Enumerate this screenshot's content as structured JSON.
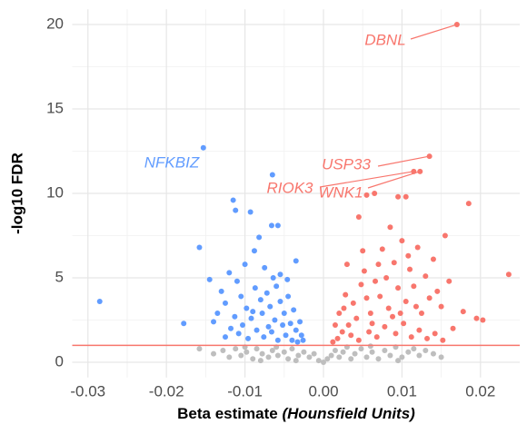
{
  "chart_data": {
    "type": "scatter",
    "xlabel": "Beta estimate",
    "xlabel_unit": "(Hounsfield Units)",
    "ylabel": "-log10 FDR",
    "xlim": [
      -0.032,
      0.025
    ],
    "ylim": [
      -0.9,
      20.9
    ],
    "xticks": [
      -0.03,
      -0.02,
      -0.01,
      {
        "value": 0,
        "label": "0.00"
      },
      0.01,
      0.02
    ],
    "yticks": [
      0,
      5,
      10,
      15,
      20
    ],
    "grid": true,
    "hline": 1,
    "hline_color": "#F8766D",
    "series": [
      {
        "color": "#BEBEBE",
        "x": [
          -0.0158,
          -0.014,
          -0.0128,
          -0.012,
          -0.0112,
          -0.0105,
          -0.0098,
          -0.009,
          -0.0085,
          -0.0078,
          -0.007,
          -0.0065,
          -0.0058,
          -0.005,
          -0.0045,
          -0.004,
          -0.0032,
          -0.0025,
          -0.0018,
          -0.0012,
          -0.0006,
          0,
          0.0005,
          0.001,
          0.0015,
          0.002,
          0.0025,
          0.003,
          0.0035,
          0.004,
          0.0048,
          0.0055,
          0.0062,
          0.007,
          0.0078,
          0.0085,
          0.0092,
          0.01,
          0.0108,
          0.0115,
          0.0122,
          0.013,
          0.014,
          0.015,
          -0.01,
          -0.006,
          0.006,
          0.0095,
          -0.0035,
          -0.008
        ],
        "y": [
          0.8,
          0.5,
          0.7,
          0.3,
          0.8,
          0.4,
          0.6,
          0.2,
          0.8,
          0.5,
          0.3,
          0.7,
          0.4,
          0.6,
          0.2,
          0.8,
          0.4,
          0.6,
          0.3,
          0.5,
          0.1,
          0,
          0.2,
          0.4,
          0.7,
          0.3,
          0.6,
          0.9,
          0.2,
          0.5,
          0.8,
          0.3,
          0.6,
          0.2,
          0.7,
          0.4,
          0.9,
          0.3,
          0.6,
          0.8,
          0.4,
          0.7,
          0.5,
          0.3,
          0.9,
          0.9,
          0.95,
          0.1,
          0.1,
          0.1
        ]
      },
      {
        "color": "#619CFF",
        "x": [
          -0.0153,
          -0.0285,
          -0.0158,
          -0.0145,
          -0.0178,
          -0.0065,
          -0.0115,
          -0.0112,
          -0.0093,
          -0.0066,
          -0.0058,
          -0.0082,
          -0.0088,
          -0.01,
          -0.0075,
          -0.012,
          -0.0055,
          -0.0035,
          -0.013,
          -0.0125,
          -0.0135,
          -0.014,
          -0.011,
          -0.0105,
          -0.0098,
          -0.0092,
          -0.0087,
          -0.008,
          -0.0078,
          -0.0072,
          -0.0068,
          -0.0062,
          -0.006,
          -0.0055,
          -0.005,
          -0.0045,
          -0.0042,
          -0.0038,
          -0.0035,
          -0.003,
          -0.0028,
          -0.0118,
          -0.0108,
          -0.0096,
          -0.0085,
          -0.0076,
          -0.0066,
          -0.0058,
          -0.0048,
          -0.004,
          -0.0125,
          -0.0113,
          -0.0103,
          -0.009,
          -0.007,
          -0.0052,
          -0.0033,
          -0.0026,
          -0.0046,
          -0.0064
        ],
        "y": [
          12.7,
          3.6,
          6.8,
          4.9,
          2.3,
          11.1,
          9.6,
          9.0,
          8.9,
          8.1,
          8.1,
          7.4,
          6.6,
          5.8,
          5.6,
          5.3,
          5.2,
          6.0,
          4.2,
          3.5,
          2.9,
          2.4,
          4.8,
          3.9,
          3.2,
          2.6,
          4.4,
          3.7,
          2.9,
          4.1,
          3.3,
          2.5,
          4.5,
          3.6,
          2.9,
          3.9,
          2.3,
          3.1,
          1.9,
          2.4,
          1.6,
          2.0,
          1.7,
          1.4,
          1.9,
          1.5,
          1.8,
          1.3,
          1.6,
          1.3,
          1.5,
          2.7,
          2.2,
          3.0,
          2.1,
          2.2,
          1.2,
          1.3,
          4.9,
          5.0
        ]
      },
      {
        "color": "#F8766D",
        "x": [
          0.017,
          0.0135,
          0.0123,
          0.0115,
          0.0095,
          0.0105,
          0.0065,
          0.0055,
          0.0185,
          0.0236,
          0.0195,
          0.0203,
          0.0178,
          0.016,
          0.0155,
          0.0085,
          0.0045,
          0.01,
          0.012,
          0.014,
          0.0075,
          0.005,
          0.003,
          0.009,
          0.011,
          0.013,
          0.0145,
          0.015,
          0.0165,
          0.0135,
          0.0125,
          0.0115,
          0.0105,
          0.0095,
          0.0088,
          0.008,
          0.0072,
          0.0066,
          0.006,
          0.0055,
          0.0048,
          0.0042,
          0.0038,
          0.0032,
          0.0028,
          0.0024,
          0.002,
          0.0018,
          0.0015,
          0.0035,
          0.0045,
          0.0058,
          0.0068,
          0.0078,
          0.0092,
          0.0102,
          0.0112,
          0.0122,
          0.0132,
          0.0142,
          0.0152,
          0.0062,
          0.0083,
          0.0098,
          0.0118,
          0.0052,
          0.0012,
          0.0026,
          0.0108,
          0.007
        ],
        "y": [
          20.0,
          12.2,
          11.3,
          11.3,
          9.8,
          9.8,
          10.0,
          9.9,
          9.4,
          5.2,
          2.6,
          2.5,
          3.0,
          4.8,
          7.5,
          8.0,
          8.6,
          7.2,
          6.8,
          6.1,
          6.7,
          6.6,
          5.8,
          5.9,
          5.5,
          5.1,
          4.2,
          3.3,
          2.0,
          3.8,
          2.9,
          4.5,
          3.6,
          4.4,
          2.7,
          5.0,
          3.9,
          4.8,
          2.9,
          3.8,
          4.6,
          2.6,
          3.5,
          2.2,
          4.0,
          1.8,
          2.9,
          1.4,
          2.2,
          1.6,
          1.3,
          1.8,
          1.5,
          2.1,
          1.7,
          2.3,
          1.5,
          1.9,
          1.4,
          1.7,
          1.3,
          2.3,
          3.2,
          2.9,
          3.3,
          5.4,
          1.2,
          3.2,
          6.3,
          5.8
        ]
      }
    ],
    "annotations": [
      {
        "text": "DBNL",
        "x": 0.017,
        "y": 20.0,
        "color": "#F8766D"
      },
      {
        "text": "NFKBIZ",
        "x": -0.0153,
        "y": 12.7,
        "color": "#619CFF"
      },
      {
        "text": "USP33",
        "x": 0.0135,
        "y": 12.2,
        "color": "#F8766D"
      },
      {
        "text": "RIOK3",
        "x": 0.0115,
        "y": 11.3,
        "color": "#F8766D"
      },
      {
        "text": "WNK1",
        "x": 0.0123,
        "y": 11.3,
        "color": "#F8766D"
      }
    ]
  }
}
